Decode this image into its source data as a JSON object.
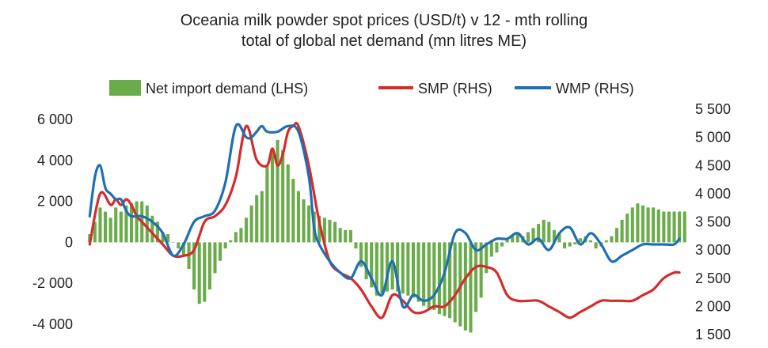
{
  "chart_data": {
    "type": "bar+line",
    "title_lines": [
      "Oceania milk powder spot prices (USD/t) v 12 - mth rolling",
      "total of global net demand (mn litres ME)"
    ],
    "left_axis": {
      "range": [
        -4500,
        6500
      ],
      "ticks": [
        6000,
        4000,
        2000,
        0,
        -2000,
        -4000
      ],
      "tick_labels": [
        "6 000",
        "4 000",
        "2 000",
        "0",
        "-2 000",
        "-4 000"
      ]
    },
    "right_axis": {
      "range": [
        1500,
        5500
      ],
      "ticks": [
        5500,
        5000,
        4500,
        4000,
        3500,
        3000,
        2500,
        2000,
        1500
      ],
      "tick_labels": [
        "5 500",
        "5 000",
        "4 500",
        "4 000",
        "3 500",
        "3 000",
        "2 500",
        "2 000",
        "1 500"
      ]
    },
    "legend_placement": "top",
    "series": [
      {
        "name": "Net import demand (LHS)",
        "type": "bar",
        "axis": "left",
        "color": "#6aab4a",
        "values": [
          400,
          1000,
          1700,
          1500,
          1200,
          1700,
          1500,
          1800,
          1900,
          2000,
          2000,
          1800,
          1300,
          1000,
          500,
          400,
          0,
          -300,
          -700,
          -1300,
          -2300,
          -3000,
          -2900,
          -2300,
          -1500,
          -900,
          -300,
          100,
          500,
          700,
          1200,
          1800,
          2300,
          2500,
          3700,
          4400,
          5000,
          4500,
          3800,
          3100,
          2500,
          2100,
          1800,
          1500,
          1300,
          1200,
          1100,
          1000,
          700,
          600,
          600,
          -300,
          -1200,
          -1800,
          -2200,
          -2600,
          -2500,
          -2400,
          -2300,
          -2400,
          -2500,
          -2600,
          -2700,
          -2900,
          -3100,
          -3200,
          -3300,
          -3500,
          -3600,
          -3700,
          -3900,
          -4100,
          -4300,
          -4400,
          -3400,
          -2700,
          -1500,
          -700,
          -500,
          -200,
          200,
          300,
          400,
          300,
          500,
          700,
          900,
          1100,
          1000,
          600,
          400,
          -300,
          -200,
          -100,
          200,
          300,
          100,
          -300,
          -200,
          100,
          300,
          700,
          1100,
          1400,
          1700,
          1900,
          1800,
          1700,
          1700,
          1600,
          1500,
          1500,
          1500,
          1500,
          1500
        ]
      },
      {
        "name": "SMP (RHS)",
        "type": "line",
        "axis": "right",
        "color": "#d62b2b",
        "x": [
          0,
          2,
          4,
          5,
          6,
          7,
          8,
          9,
          10,
          12,
          14,
          16,
          18,
          20,
          22,
          24,
          26,
          28,
          30,
          32,
          34,
          35,
          36,
          37,
          38,
          39,
          40,
          42,
          44,
          46,
          48,
          50,
          52,
          54,
          56,
          58,
          60,
          62,
          64,
          66,
          68,
          70,
          72,
          74,
          76,
          78,
          80,
          82,
          84,
          86,
          88,
          90,
          92,
          94,
          96,
          98,
          100,
          102,
          104,
          106,
          108,
          110,
          112,
          113
        ],
        "values": [
          3100,
          4000,
          3800,
          3900,
          3800,
          3900,
          3800,
          3600,
          3500,
          3300,
          3100,
          2900,
          2900,
          3000,
          3500,
          3600,
          3800,
          4300,
          5200,
          4600,
          4500,
          4800,
          4500,
          4700,
          5100,
          5200,
          5200,
          4500,
          3500,
          2800,
          2600,
          2500,
          2300,
          2000,
          1800,
          2200,
          2100,
          1900,
          1900,
          2000,
          2000,
          2200,
          2500,
          2700,
          2700,
          2600,
          2200,
          2100,
          2100,
          2100,
          2000,
          1900,
          1800,
          1900,
          2000,
          2100,
          2100,
          2100,
          2100,
          2200,
          2300,
          2500,
          2600,
          2600
        ]
      },
      {
        "name": "WMP (RHS)",
        "type": "line",
        "axis": "right",
        "color": "#1f6fb2",
        "x": [
          0,
          1,
          2,
          3,
          4,
          5,
          6,
          7,
          8,
          10,
          12,
          14,
          16,
          18,
          20,
          22,
          24,
          26,
          28,
          30,
          31,
          32,
          33,
          34,
          36,
          38,
          40,
          42,
          43,
          44,
          46,
          48,
          50,
          52,
          54,
          56,
          58,
          60,
          62,
          64,
          66,
          68,
          70,
          72,
          74,
          76,
          78,
          80,
          82,
          84,
          86,
          88,
          90,
          92,
          94,
          96,
          98,
          100,
          102,
          104,
          106,
          108,
          110,
          112,
          113
        ],
        "values": [
          3600,
          4300,
          4500,
          4100,
          4000,
          3900,
          3900,
          3700,
          3600,
          3600,
          3500,
          3300,
          2900,
          3100,
          3500,
          3600,
          3700,
          4200,
          5200,
          5000,
          5000,
          5100,
          5200,
          5100,
          5100,
          5200,
          5100,
          4300,
          3400,
          3100,
          2800,
          2600,
          2500,
          2800,
          2500,
          2200,
          2800,
          2000,
          2200,
          2100,
          2200,
          2600,
          3300,
          3300,
          3000,
          3100,
          3200,
          3200,
          3300,
          3100,
          3200,
          3000,
          3300,
          3400,
          3100,
          3300,
          3100,
          2800,
          2900,
          3000,
          3100,
          3100,
          3100,
          3100,
          3200
        ]
      }
    ]
  }
}
